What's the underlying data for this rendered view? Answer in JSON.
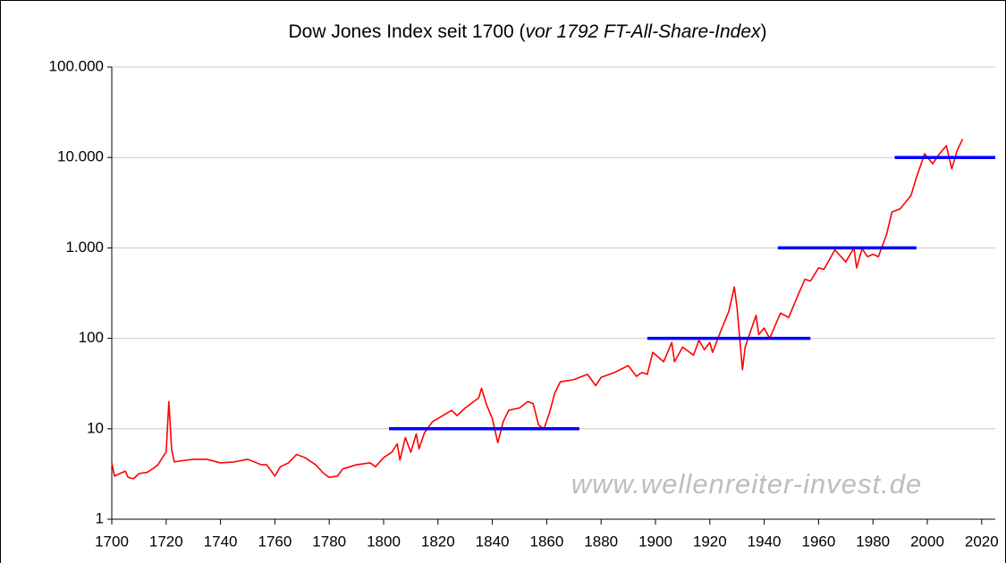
{
  "chart_data": {
    "type": "line",
    "title_parts": [
      "Dow Jones Index seit 1700 (",
      "vor 1792 FT-All-Share-Index",
      ")"
    ],
    "annotation": "www.wellenreiter-invest.de",
    "log_y": true,
    "grid": true,
    "xlim": [
      1700,
      2025
    ],
    "xticks": [
      1700,
      1720,
      1740,
      1760,
      1780,
      1800,
      1820,
      1840,
      1860,
      1880,
      1900,
      1920,
      1940,
      1960,
      1980,
      2000,
      2020
    ],
    "ylim": [
      1,
      100000
    ],
    "yticks": [
      1,
      10,
      100,
      {
        "value": 1000,
        "label": "1.000"
      },
      {
        "value": 10000,
        "label": "10.000"
      },
      {
        "value": 100000,
        "label": "100.000"
      }
    ],
    "series": [
      {
        "color": "#ff0000",
        "x": [
          1700,
          1701,
          1703,
          1705,
          1706,
          1708,
          1710,
          1713,
          1715,
          1717,
          1719,
          1720,
          1721,
          1722,
          1723,
          1725,
          1730,
          1735,
          1740,
          1745,
          1750,
          1755,
          1757,
          1760,
          1762,
          1765,
          1768,
          1771,
          1775,
          1778,
          1780,
          1783,
          1785,
          1790,
          1795,
          1797,
          1800,
          1803,
          1805,
          1806,
          1808,
          1810,
          1812,
          1813,
          1815,
          1818,
          1820,
          1825,
          1827,
          1830,
          1835,
          1836,
          1838,
          1840,
          1842,
          1844,
          1846,
          1850,
          1853,
          1855,
          1857,
          1859,
          1861,
          1863,
          1865,
          1870,
          1875,
          1878,
          1880,
          1885,
          1890,
          1893,
          1895,
          1897,
          1899,
          1903,
          1906,
          1907,
          1910,
          1914,
          1916,
          1918,
          1920,
          1921,
          1924,
          1927,
          1929,
          1930,
          1932,
          1933,
          1937,
          1938,
          1940,
          1942,
          1946,
          1949,
          1952,
          1955,
          1957,
          1960,
          1962,
          1966,
          1970,
          1973,
          1974,
          1976,
          1978,
          1980,
          1982,
          1985,
          1987,
          1990,
          1994,
          1996,
          1999,
          2002,
          2004,
          2007,
          2009,
          2011,
          2013
        ],
        "values": [
          4.2,
          3.0,
          3.2,
          3.4,
          2.9,
          2.8,
          3.2,
          3.3,
          3.6,
          4.0,
          5.0,
          5.5,
          20,
          6,
          4.3,
          4.4,
          4.6,
          4.6,
          4.2,
          4.3,
          4.6,
          4.0,
          4.0,
          3.0,
          3.8,
          4.2,
          5.2,
          4.8,
          4.0,
          3.2,
          2.9,
          3.0,
          3.6,
          4.0,
          4.2,
          3.8,
          4.8,
          5.5,
          6.8,
          4.5,
          8,
          5.5,
          8.8,
          6,
          9,
          12,
          13,
          16,
          14,
          17,
          22,
          28,
          18,
          13,
          7,
          12,
          16,
          17,
          20,
          19,
          11,
          10,
          15,
          25,
          33,
          35,
          40,
          30,
          37,
          42,
          50,
          38,
          42,
          40,
          70,
          55,
          90,
          55,
          80,
          65,
          95,
          75,
          90,
          70,
          120,
          200,
          370,
          220,
          45,
          80,
          180,
          110,
          130,
          100,
          190,
          170,
          280,
          450,
          430,
          600,
          580,
          950,
          700,
          1000,
          600,
          980,
          800,
          850,
          800,
          1400,
          2500,
          2700,
          3800,
          6000,
          11000,
          8500,
          10500,
          13500,
          7500,
          12000,
          16000
        ]
      }
    ],
    "segments_color": "#0000ff",
    "segments": [
      {
        "value": 10,
        "x": [
          1802,
          1872
        ]
      },
      {
        "value": 100,
        "x": [
          1897,
          1957
        ]
      },
      {
        "value": 1000,
        "x": [
          1945,
          1996
        ]
      },
      {
        "value": 10000,
        "x": [
          1988,
          2025
        ]
      }
    ]
  }
}
